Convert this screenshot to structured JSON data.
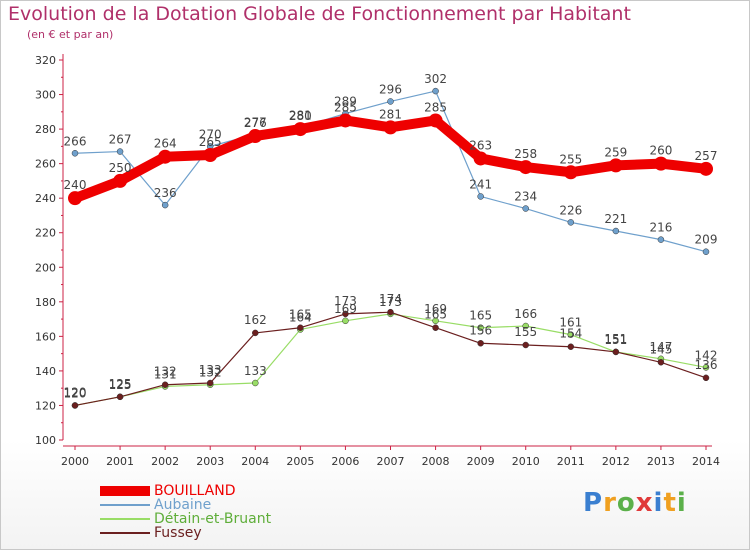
{
  "chart_data": {
    "type": "line",
    "title": "Evolution de la Dotation Globale de Fonctionnement par Habitant",
    "subtitle": "(en € et par an)",
    "categories": [
      "2000",
      "2001",
      "2002",
      "2003",
      "2004",
      "2005",
      "2006",
      "2007",
      "2008",
      "2009",
      "2010",
      "2011",
      "2012",
      "2013",
      "2014"
    ],
    "ylim": [
      100,
      320
    ],
    "yticks": [
      100,
      120,
      140,
      160,
      180,
      200,
      220,
      240,
      260,
      280,
      300,
      320
    ],
    "grid": false,
    "legend_position": "bottom-left",
    "series": [
      {
        "name": "BOUILLAND",
        "color": "#ee0000",
        "values": [
          240,
          250,
          264,
          265,
          276,
          280,
          285,
          281,
          285,
          263,
          258,
          255,
          259,
          260,
          257
        ]
      },
      {
        "name": "Aubaine",
        "color": "#6fa0cc",
        "values": [
          266,
          267,
          236,
          270,
          277,
          281,
          289,
          296,
          302,
          241,
          234,
          226,
          221,
          216,
          209
        ]
      },
      {
        "name": "Détain-et-Bruant",
        "color": "#99dd66",
        "values": [
          120,
          125,
          131,
          132,
          133,
          164,
          169,
          173,
          169,
          165,
          166,
          161,
          151,
          147,
          142
        ]
      },
      {
        "name": "Fussey",
        "color": "#6b1f1f",
        "values": [
          120,
          125,
          132,
          133,
          162,
          165,
          173,
          174,
          165,
          156,
          155,
          154,
          151,
          145,
          136
        ]
      }
    ]
  },
  "logo": {
    "letters": [
      "P",
      "r",
      "o",
      "x",
      "i",
      "t",
      "i"
    ],
    "colors": [
      "#3a7fd0",
      "#f0a020",
      "#5bb04a",
      "#e03a3a",
      "#3a7fd0",
      "#f0a020",
      "#5bb04a"
    ]
  }
}
